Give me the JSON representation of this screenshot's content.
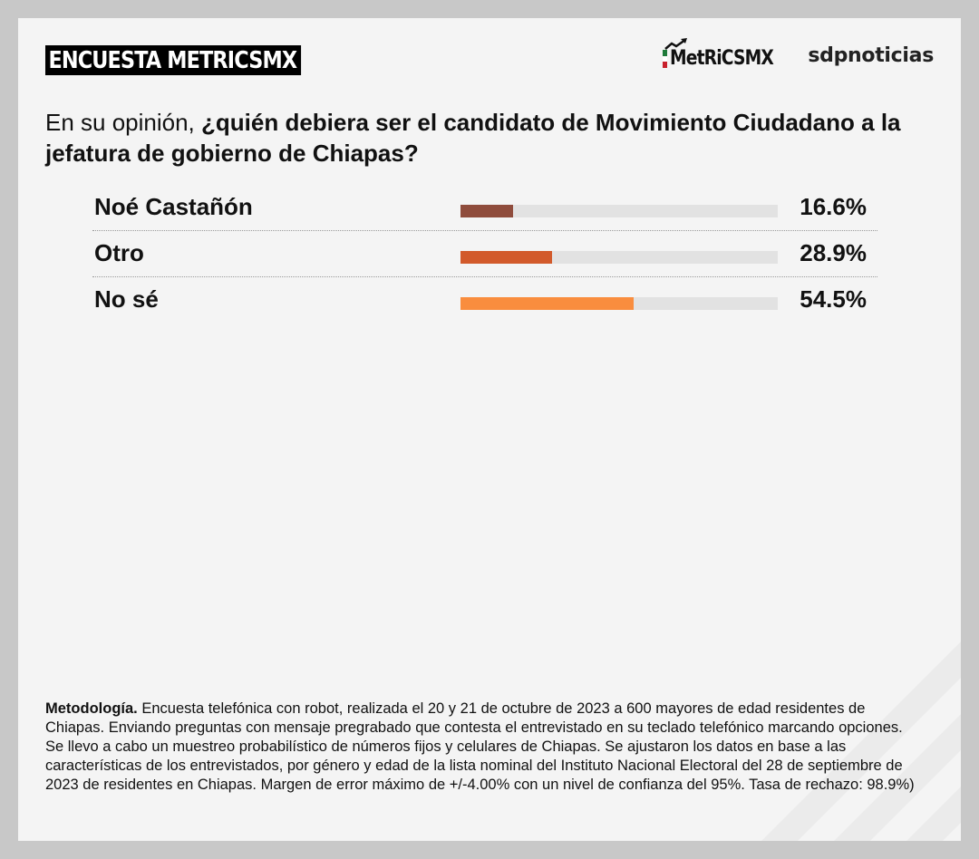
{
  "header": {
    "title": "ENCUESTA METRICSMX",
    "logo_metrics": "MetRiCSMX",
    "logo_sdp": "sdpnoticias"
  },
  "question": {
    "lead": "En su opinión, ",
    "bold": "¿quién debiera ser el candidato de Movimiento Ciudadano a la jefatura de gobierno de Chiapas?"
  },
  "chart_data": {
    "type": "bar",
    "orientation": "horizontal",
    "categories": [
      "Noé Castañón",
      "Otro",
      "No sé"
    ],
    "values": [
      16.6,
      28.9,
      54.5
    ],
    "value_labels": [
      "16.6%",
      "28.9%",
      "54.5%"
    ],
    "colors": [
      "#8f4c3c",
      "#d25a2b",
      "#f98d3e"
    ],
    "track_color": "#e2e2e2",
    "xlim": [
      0,
      100
    ]
  },
  "methodology": {
    "label": "Metodología.",
    "text": " Encuesta telefónica con robot, realizada el 20 y 21 de octubre de 2023 a 600 mayores de edad residentes de Chiapas. Enviando preguntas con mensaje pregrabado que contesta el entrevistado en su teclado telefónico marcando opciones. Se llevo a cabo un muestreo probabilístico de números fijos y celulares de Chiapas. Se ajustaron los datos en base a las características de los entrevistados, por género y edad de la lista nominal del Instituto Nacional Electoral del 28 de septiembre de 2023 de residentes en Chiapas. Margen de error máximo de +/-4.00% con un nivel de confianza del 95%. Tasa de rechazo: 98.9%)"
  },
  "colors": {
    "flag_green": "#1f7a3a",
    "flag_white": "#ffffff",
    "flag_red": "#c8202c"
  }
}
